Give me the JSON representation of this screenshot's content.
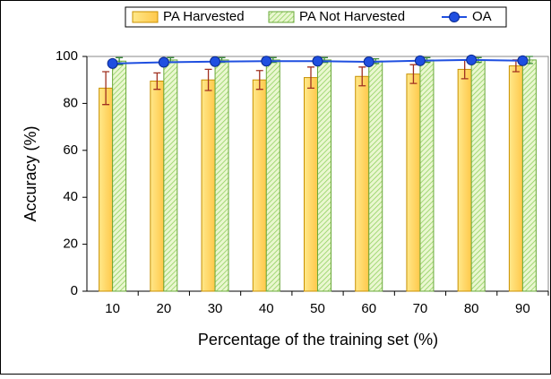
{
  "chart_data": {
    "type": "bar",
    "x_label": "Percentage of the training set (%)",
    "y_label": "Accuracy (%)",
    "categories": [
      "10",
      "20",
      "30",
      "40",
      "50",
      "60",
      "70",
      "80",
      "90"
    ],
    "series": [
      {
        "name": "PA Harvested",
        "color": "#ffc000",
        "values": [
          86.5,
          89.5,
          90,
          90,
          91,
          91.5,
          92.5,
          94.5,
          96
        ],
        "errors": [
          7,
          3.5,
          4.5,
          4,
          4.5,
          4,
          4,
          4,
          2.5
        ]
      },
      {
        "name": "PA Not Harvested",
        "color": "#92d050",
        "values": [
          98,
          98.5,
          98.5,
          98.5,
          98.5,
          98,
          98.5,
          98.5,
          98.5
        ],
        "errors": [
          1.5,
          1,
          1,
          1,
          1,
          1,
          1,
          1,
          1.5
        ]
      },
      {
        "name": "OA",
        "type": "line",
        "color": "#1f4fe0",
        "values": [
          97,
          97.5,
          97.8,
          98,
          98,
          97.7,
          98.2,
          98.5,
          98.2
        ]
      }
    ],
    "ylim": [
      0,
      100
    ],
    "yticks": [
      0,
      20,
      40,
      60,
      80,
      100
    ]
  }
}
